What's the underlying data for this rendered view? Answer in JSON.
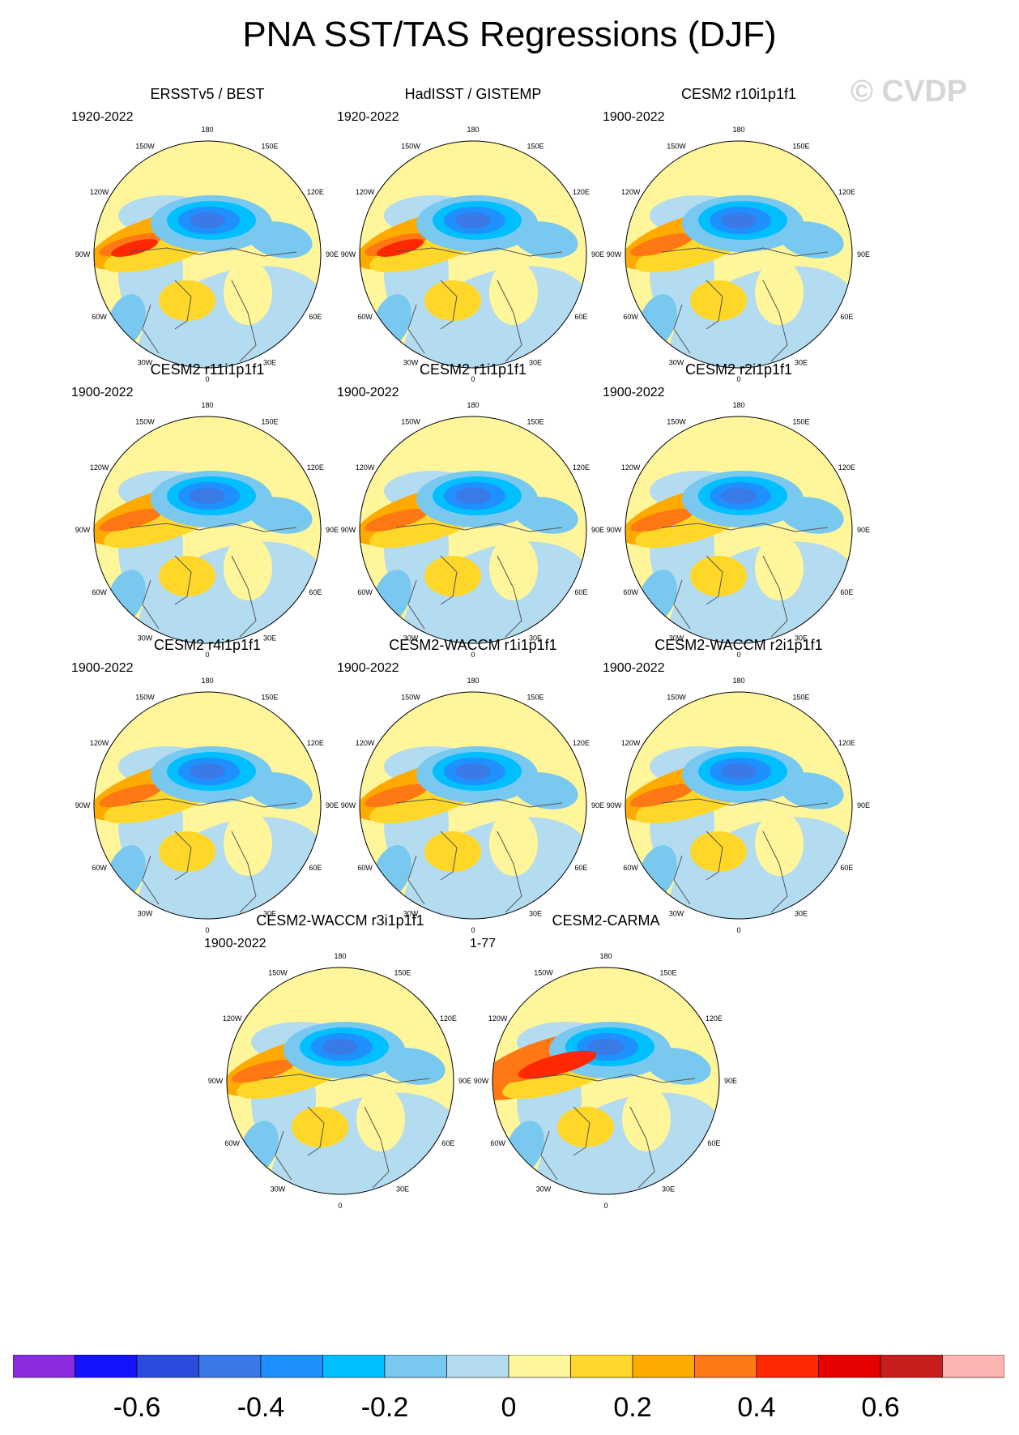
{
  "figure": {
    "title": "PNA SST/TAS Regressions (DJF)",
    "watermark": "© CVDP"
  },
  "lon_labels": [
    "180",
    "150E",
    "120E",
    "90E",
    "60E",
    "30E",
    "0",
    "30W",
    "60W",
    "90W",
    "120W",
    "150W"
  ],
  "panels": [
    {
      "title": "ERSSTv5 / BEST",
      "years": "1920-2022"
    },
    {
      "title": "HadISST / GISTEMP",
      "years": "1920-2022"
    },
    {
      "title": "CESM2 r10i1p1f1",
      "years": "1900-2022"
    },
    {
      "title": "CESM2 r11i1p1f1",
      "years": "1900-2022"
    },
    {
      "title": "CESM2 r1i1p1f1",
      "years": "1900-2022"
    },
    {
      "title": "CESM2 r2i1p1f1",
      "years": "1900-2022"
    },
    {
      "title": "CESM2 r4i1p1f1",
      "years": "1900-2022"
    },
    {
      "title": "CESM2-WACCM r1i1p1f1",
      "years": "1900-2022"
    },
    {
      "title": "CESM2-WACCM r2i1p1f1",
      "years": "1900-2022"
    },
    {
      "title": "CESM2-WACCM r3i1p1f1",
      "years": "1900-2022"
    },
    {
      "title": "CESM2-CARMA",
      "years": "1-77"
    }
  ],
  "colorbar": {
    "colors": [
      "#8a2be2",
      "#1414ff",
      "#2a4bdc",
      "#3a7ae6",
      "#1e90ff",
      "#00bfff",
      "#78c8f0",
      "#b4dcf0",
      "#fff59a",
      "#ffd728",
      "#ffaa00",
      "#ff7814",
      "#ff2800",
      "#e60000",
      "#c81e1e",
      "#ffb4b4"
    ],
    "tick_labels": [
      "-0.6",
      "-0.4",
      "-0.2",
      "0",
      "0.2",
      "0.4",
      "0.6"
    ]
  }
}
